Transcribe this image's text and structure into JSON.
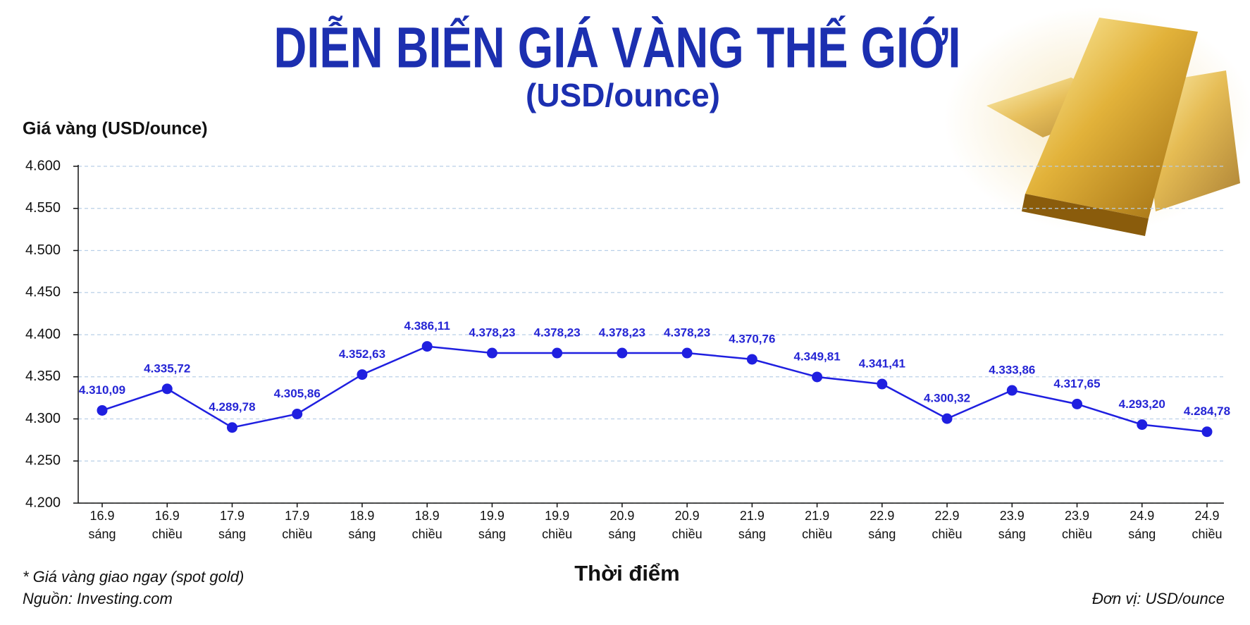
{
  "chart_data": {
    "type": "line",
    "title": "DIỄN BIẾN GIÁ VÀNG THẾ GIỚI",
    "subtitle": "(USD/ounce)",
    "y_axis_label": "Giá vàng (USD/ounce)",
    "x_axis_label": "Thời điểm",
    "categories": [
      [
        "16.9",
        "sáng"
      ],
      [
        "16.9",
        "chiều"
      ],
      [
        "17.9",
        "sáng"
      ],
      [
        "17.9",
        "chiều"
      ],
      [
        "18.9",
        "sáng"
      ],
      [
        "18.9",
        "chiều"
      ],
      [
        "19.9",
        "sáng"
      ],
      [
        "19.9",
        "chiều"
      ],
      [
        "20.9",
        "sáng"
      ],
      [
        "20.9",
        "chiều"
      ],
      [
        "21.9",
        "sáng"
      ],
      [
        "21.9",
        "chiều"
      ],
      [
        "22.9",
        "sáng"
      ],
      [
        "22.9",
        "chiều"
      ],
      [
        "23.9",
        "sáng"
      ],
      [
        "23.9",
        "chiều"
      ],
      [
        "24.9",
        "sáng"
      ],
      [
        "24.9",
        "chiều"
      ]
    ],
    "values": [
      4310.09,
      4335.72,
      4289.78,
      4305.86,
      4352.63,
      4386.11,
      4378.23,
      4378.23,
      4378.23,
      4378.23,
      4370.76,
      4349.81,
      4341.41,
      4300.32,
      4333.86,
      4317.65,
      4293.2,
      4284.78
    ],
    "value_labels": [
      "4.310,09",
      "4.335,72",
      "4.289,78",
      "4.305,86",
      "4.352,63",
      "4.386,11",
      "4.378,23",
      "4.378,23",
      "4.378,23",
      "4.378,23",
      "4.370,76",
      "4.349,81",
      "4.341,41",
      "4.300,32",
      "4.333,86",
      "4.317,65",
      "4.293,20",
      "4.284,78"
    ],
    "color": "#1f1fe0",
    "ylim": [
      4200,
      4600
    ],
    "yticks": [
      {
        "value": 4200,
        "label": "4.200"
      },
      {
        "value": 4250,
        "label": "4.250"
      },
      {
        "value": 4300,
        "label": "4.300"
      },
      {
        "value": 4350,
        "label": "4.350"
      },
      {
        "value": 4400,
        "label": "4.400"
      },
      {
        "value": 4450,
        "label": "4.450"
      },
      {
        "value": 4500,
        "label": "4.500"
      },
      {
        "value": 4550,
        "label": "4.550"
      },
      {
        "value": 4600,
        "label": "4.600"
      }
    ],
    "grid": true,
    "notes": [
      "* Giá vàng giao ngay (spot gold)",
      "Nguồn: Investing.com"
    ],
    "unit_note": "Đơn vị: USD/ounce"
  }
}
